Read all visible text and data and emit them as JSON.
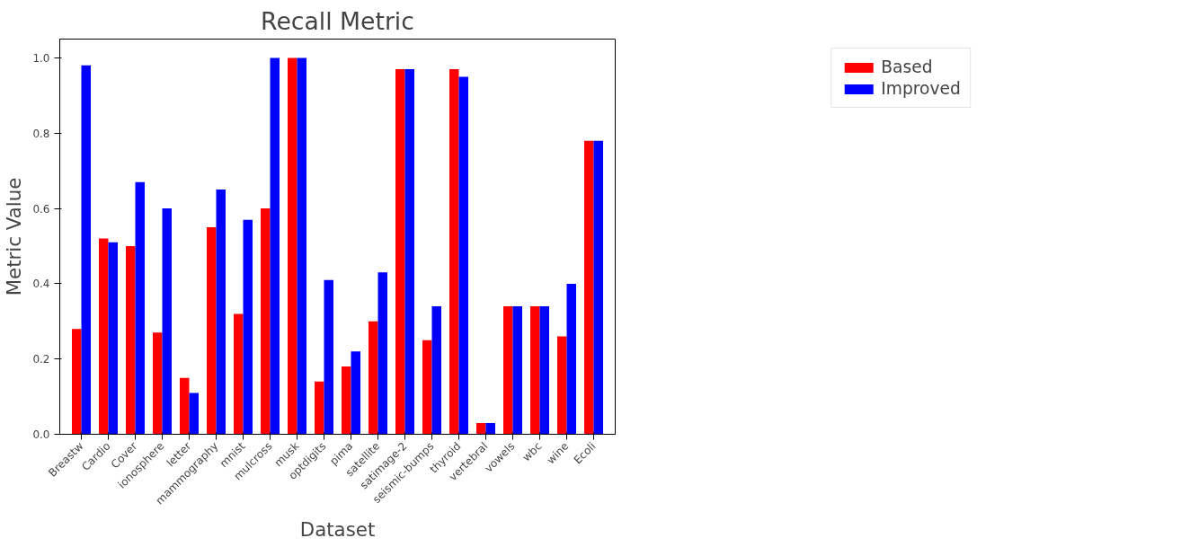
{
  "chart_data": {
    "type": "bar",
    "title": "Recall Metric",
    "xlabel": "Dataset",
    "ylabel": "Metric Value",
    "categories": [
      "Breastw",
      "Cardio",
      "Cover",
      "ionosphere",
      "letter",
      "mammography",
      "mnist",
      "mulcross",
      "musk",
      "optdigits",
      "pima",
      "satellite",
      "satimage-2",
      "seismic-bumps",
      "thyroid",
      "vertebral",
      "vowels",
      "wbc",
      "wine",
      "Ecoli"
    ],
    "series": [
      {
        "name": "Based",
        "color": "#ff0000",
        "values": [
          0.28,
          0.52,
          0.5,
          0.27,
          0.15,
          0.55,
          0.32,
          0.6,
          1.0,
          0.14,
          0.18,
          0.3,
          0.97,
          0.25,
          0.97,
          0.03,
          0.34,
          0.34,
          0.26,
          0.78
        ]
      },
      {
        "name": "Improved",
        "color": "#0000ff",
        "values": [
          0.98,
          0.51,
          0.67,
          0.6,
          0.11,
          0.65,
          0.57,
          1.0,
          1.0,
          0.41,
          0.22,
          0.43,
          0.97,
          0.34,
          0.95,
          0.03,
          0.34,
          0.34,
          0.4,
          0.78
        ]
      }
    ],
    "ylim": [
      0,
      1.05
    ],
    "yticks": [
      {
        "value": 0,
        "label": "0.0"
      },
      {
        "value": 0.2,
        "label": "0.2"
      },
      {
        "value": 0.4,
        "label": "0.4"
      },
      {
        "value": 0.6,
        "label": "0.6"
      },
      {
        "value": 0.8,
        "label": "0.8"
      },
      {
        "value": 1.0,
        "label": "1.0"
      }
    ],
    "grid": false,
    "legend": "top right"
  }
}
